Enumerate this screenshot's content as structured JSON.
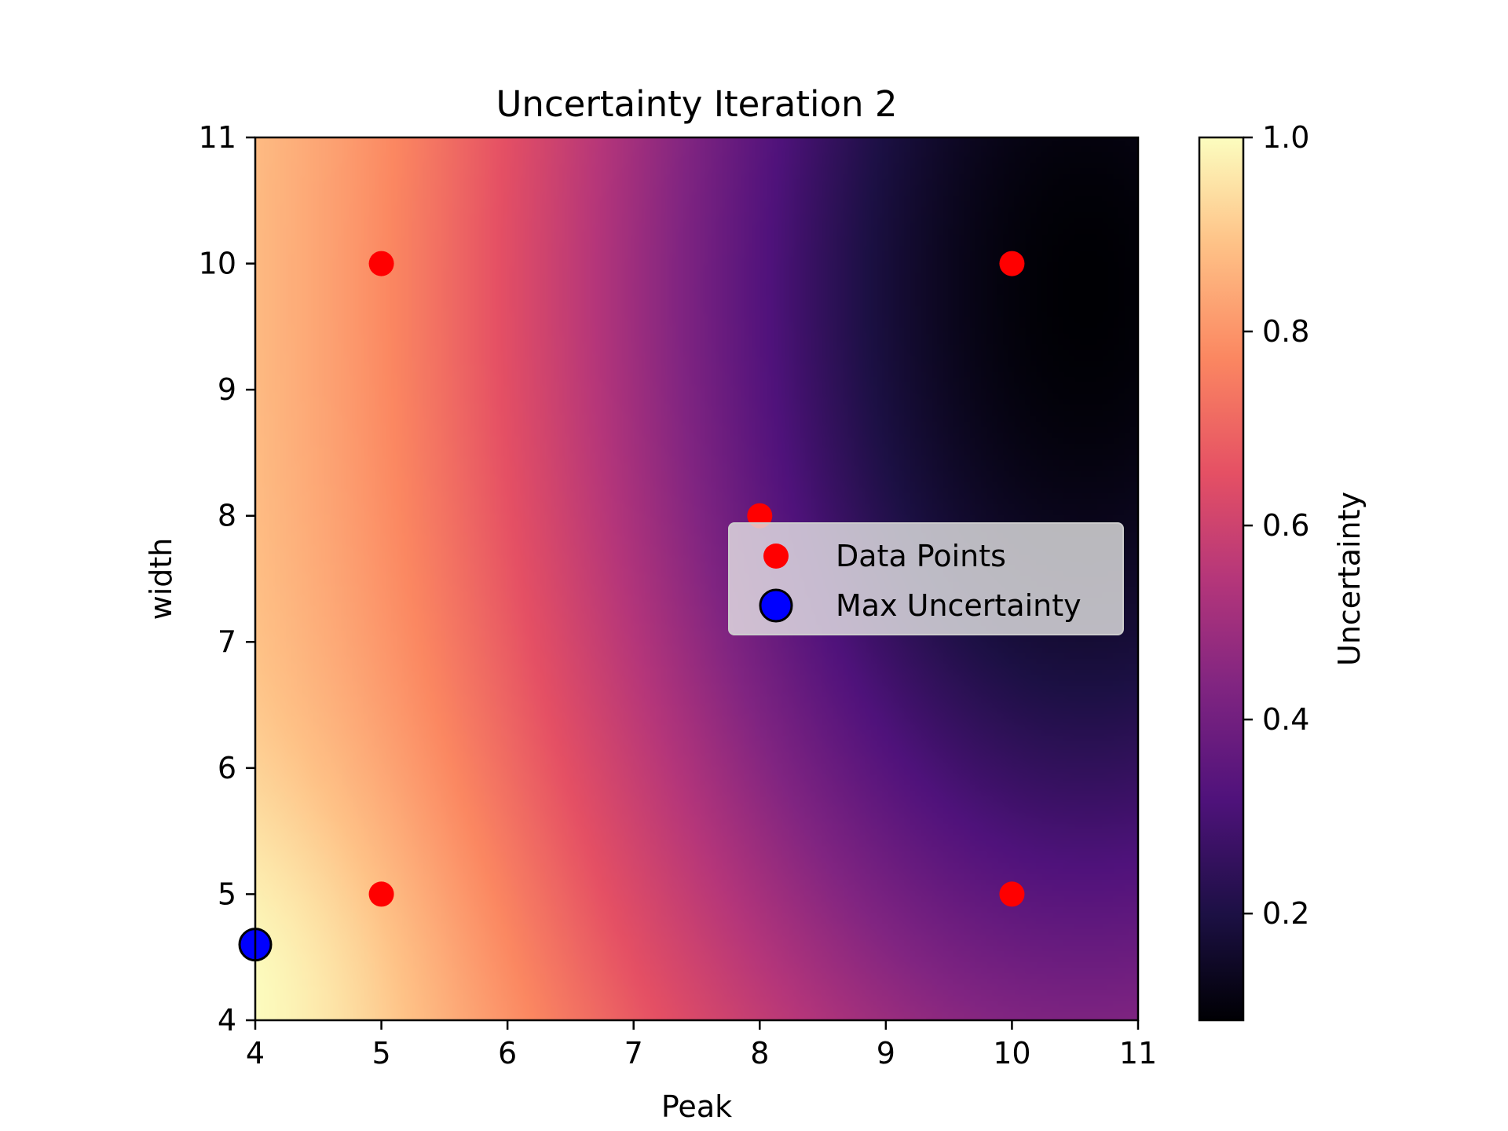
{
  "chart_data": {
    "type": "heatmap",
    "title": "Uncertainty Iteration 2",
    "xlabel": "Peak",
    "ylabel": "width",
    "xlim": [
      4,
      11
    ],
    "ylim": [
      4,
      11
    ],
    "x_ticks": [
      "4",
      "5",
      "6",
      "7",
      "8",
      "9",
      "10",
      "11"
    ],
    "y_ticks": [
      "4",
      "5",
      "6",
      "7",
      "8",
      "9",
      "10",
      "11"
    ],
    "colormap": "magma",
    "colorbar": {
      "label": "Uncertainty",
      "range": [
        0.09,
        1.0
      ],
      "ticks": [
        "0.2",
        "0.4",
        "0.6",
        "0.8",
        "1.0"
      ]
    },
    "surface": {
      "description_values": "uncertainty high (~1.0) at low Peak, low width; minimum (~0.1) near Peak 10-11, width 9-10",
      "min": 0.09,
      "max": 1.0
    },
    "series": [
      {
        "name": "Data Points",
        "type": "scatter",
        "color": "#ff0000",
        "points": [
          {
            "x": 5,
            "y": 10
          },
          {
            "x": 10,
            "y": 10
          },
          {
            "x": 8,
            "y": 8
          },
          {
            "x": 5,
            "y": 5
          },
          {
            "x": 10,
            "y": 5
          }
        ]
      },
      {
        "name": "Max Uncertainty",
        "type": "scatter",
        "color": "#0000ff",
        "edge_color": "#000000",
        "points": [
          {
            "x": 4.0,
            "y": 4.6
          }
        ]
      }
    ],
    "legend": {
      "placement": "center-right",
      "entries": [
        "Data Points",
        "Max Uncertainty"
      ]
    },
    "grid": false
  }
}
